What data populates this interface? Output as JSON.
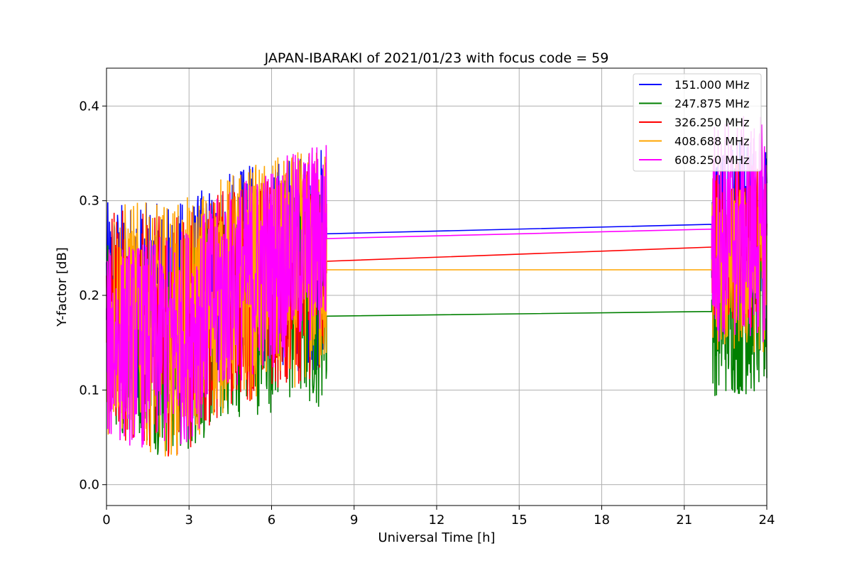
{
  "chart_data": {
    "type": "line",
    "title": "JAPAN-IBARAKI of 2021/01/23 with focus code = 59",
    "xlabel": "Universal Time [h]",
    "ylabel": "Y-factor [dB]",
    "xlim": [
      0,
      24
    ],
    "ylim": [
      -0.022,
      0.44
    ],
    "xticks": [
      0,
      3,
      6,
      9,
      12,
      15,
      18,
      21,
      24
    ],
    "yticks": [
      0.0,
      0.1,
      0.2,
      0.3,
      0.4
    ],
    "ytick_labels": [
      "0.0",
      "0.1",
      "0.2",
      "0.3",
      "0.4"
    ],
    "grid": true,
    "legend_position": "top-right",
    "segments": {
      "morning": [
        0,
        8
      ],
      "evening": [
        22,
        24
      ]
    },
    "series": [
      {
        "name": "151.000 MHz",
        "color": "#0000ff",
        "gap_line": [
          [
            8,
            0.265
          ],
          [
            22,
            0.275
          ]
        ],
        "trend_start": [
          0.1,
          0.3
        ],
        "trend_end": [
          0.12,
          0.36
        ]
      },
      {
        "name": "247.875 MHz",
        "color": "#008000",
        "gap_line": [
          [
            8,
            0.178
          ],
          [
            22,
            0.183
          ]
        ],
        "trend_start": [
          0.06,
          0.26
        ],
        "trend_end": [
          0.08,
          0.32
        ]
      },
      {
        "name": "326.250 MHz",
        "color": "#ff0000",
        "gap_line": [
          [
            8,
            0.236
          ],
          [
            22,
            0.251
          ]
        ],
        "trend_start": [
          0.05,
          0.29
        ],
        "trend_end": [
          0.11,
          0.34
        ]
      },
      {
        "name": "408.688 MHz",
        "color": "#ffa500",
        "gap_line": [
          [
            8,
            0.227
          ],
          [
            22,
            0.227
          ]
        ],
        "trend_start": [
          0.05,
          0.3
        ],
        "trend_end": [
          0.11,
          0.36
        ]
      },
      {
        "name": "608.250 MHz",
        "color": "#ff00ff",
        "gap_line": [
          [
            8,
            0.26
          ],
          [
            22,
            0.27
          ]
        ],
        "trend_start": [
          0.04,
          0.25
        ],
        "trend_end": [
          0.15,
          0.37
        ]
      }
    ]
  }
}
